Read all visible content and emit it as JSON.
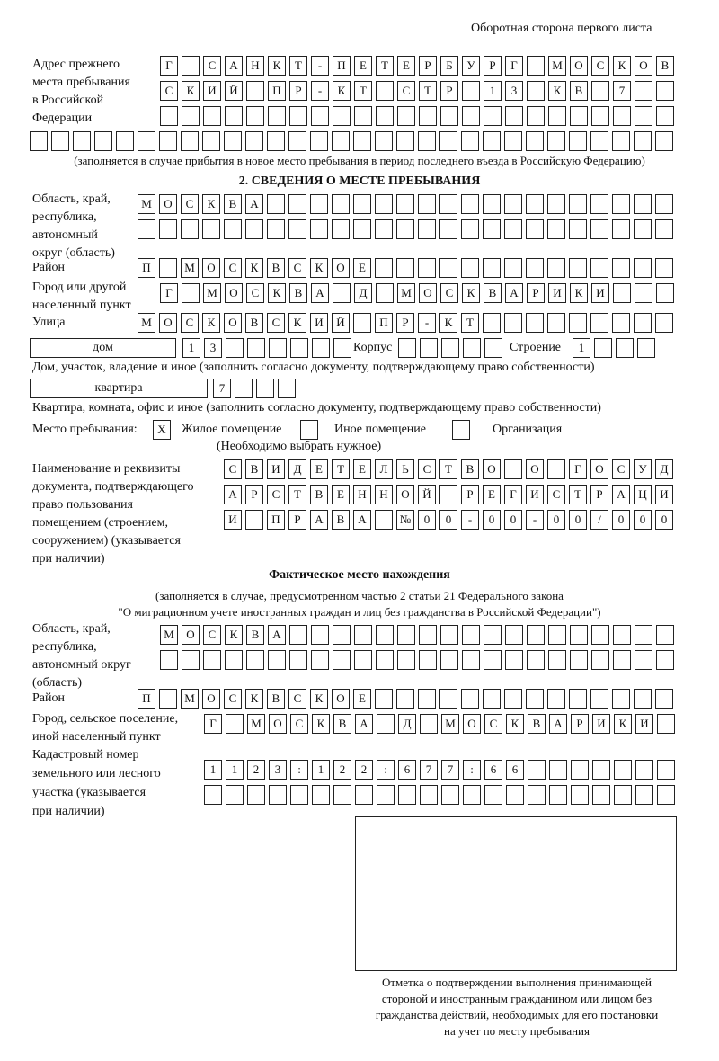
{
  "header": {
    "page_side": "Оборотная сторона первого листа"
  },
  "previous_address": {
    "label": [
      "Адрес прежнего",
      "места пребывания",
      "в Российской",
      "Федерации"
    ],
    "rows": [
      [
        "Г",
        "",
        "С",
        "А",
        "Н",
        "К",
        "Т",
        "-",
        "П",
        "Е",
        "Т",
        "Е",
        "Р",
        "Б",
        "У",
        "Р",
        "Г",
        "",
        "М",
        "О",
        "С",
        "К",
        "О",
        "В"
      ],
      [
        "С",
        "К",
        "И",
        "Й",
        "",
        "П",
        "Р",
        "-",
        "К",
        "Т",
        "",
        "С",
        "Т",
        "Р",
        "",
        "1",
        "3",
        "",
        "К",
        "В",
        "",
        "7",
        "",
        ""
      ],
      [
        "",
        "",
        "",
        "",
        "",
        "",
        "",
        "",
        "",
        "",
        "",
        "",
        "",
        "",
        "",
        "",
        "",
        "",
        "",
        "",
        "",
        "",
        "",
        ""
      ],
      [
        "",
        "",
        "",
        "",
        "",
        "",
        "",
        "",
        "",
        "",
        "",
        "",
        "",
        "",
        "",
        "",
        "",
        "",
        "",
        "",
        "",
        "",
        "",
        "",
        "",
        "",
        "",
        "",
        "",
        ""
      ]
    ],
    "note": "(заполняется в случае прибытия в новое место пребывания в период последнего въезда в Российскую Федерацию)"
  },
  "section2": {
    "title": "2. СВЕДЕНИЯ О МЕСТЕ ПРЕБЫВАНИЯ",
    "region_label": [
      "Область, край,",
      "республика,",
      "автономный",
      "округ (область)"
    ],
    "region_rows": [
      [
        "М",
        "О",
        "С",
        "К",
        "В",
        "А",
        "",
        "",
        "",
        "",
        "",
        "",
        "",
        "",
        "",
        "",
        "",
        "",
        "",
        "",
        "",
        "",
        "",
        "",
        ""
      ],
      [
        "",
        "",
        "",
        "",
        "",
        "",
        "",
        "",
        "",
        "",
        "",
        "",
        "",
        "",
        "",
        "",
        "",
        "",
        "",
        "",
        "",
        "",
        "",
        "",
        ""
      ]
    ],
    "district_label": "Район",
    "district": [
      "П",
      "",
      "М",
      "О",
      "С",
      "К",
      "В",
      "С",
      "К",
      "О",
      "Е",
      "",
      "",
      "",
      "",
      "",
      "",
      "",
      "",
      "",
      "",
      "",
      "",
      "",
      ""
    ],
    "city_label": [
      "Город или другой",
      "населенный пункт"
    ],
    "city": [
      "Г",
      "",
      "М",
      "О",
      "С",
      "К",
      "В",
      "А",
      "",
      "Д",
      "",
      "М",
      "О",
      "С",
      "К",
      "В",
      "А",
      "Р",
      "И",
      "К",
      "И",
      "",
      "",
      ""
    ],
    "street_label": "Улица",
    "street": [
      "М",
      "О",
      "С",
      "К",
      "О",
      "В",
      "С",
      "К",
      "И",
      "Й",
      "",
      "П",
      "Р",
      "-",
      "К",
      "Т",
      "",
      "",
      "",
      "",
      "",
      "",
      "",
      "",
      ""
    ],
    "house_type": "дом",
    "house": [
      "1",
      "3",
      "",
      "",
      "",
      "",
      "",
      ""
    ],
    "korpus_label": "Корпус",
    "korpus": [
      "",
      "",
      "",
      "",
      ""
    ],
    "building_label": "Строение",
    "building": [
      "1",
      "",
      "",
      ""
    ],
    "house_note": "Дом, участок, владение и иное (заполнить согласно документу, подтверждающему право собственности)",
    "flat_type": "квартира",
    "flat": [
      "7",
      "",
      "",
      ""
    ],
    "flat_note": "Квартира, комната, офис и иное (заполнить согласно документу, подтверждающему право собственности)",
    "place_label": "Место пребывания:",
    "place_options": [
      {
        "label": "Жилое помещение",
        "mark": "X"
      },
      {
        "label": "Иное помещение",
        "mark": ""
      },
      {
        "label": "Организация",
        "mark": ""
      }
    ],
    "place_note": "(Необходимо выбрать нужное)",
    "doc_label": [
      "Наименование и реквизиты",
      "документа, подтверждающего",
      "право пользования",
      "помещением (строением,",
      "сооружением) (указывается",
      "при наличии)"
    ],
    "doc_rows": [
      [
        "С",
        "В",
        "И",
        "Д",
        "Е",
        "Т",
        "Е",
        "Л",
        "Ь",
        "С",
        "Т",
        "В",
        "О",
        "",
        "О",
        "",
        "Г",
        "О",
        "С",
        "У",
        "Д"
      ],
      [
        "А",
        "Р",
        "С",
        "Т",
        "В",
        "Е",
        "Н",
        "Н",
        "О",
        "Й",
        "",
        "Р",
        "Е",
        "Г",
        "И",
        "С",
        "Т",
        "Р",
        "А",
        "Ц",
        "И"
      ],
      [
        "И",
        "",
        "П",
        "Р",
        "А",
        "В",
        "А",
        "",
        "№",
        "0",
        "0",
        "-",
        "0",
        "0",
        "-",
        "0",
        "0",
        "/",
        "0",
        "0",
        "0"
      ]
    ]
  },
  "actual": {
    "title": "Фактическое место нахождения",
    "note": [
      "(заполняется в случае, предусмотренном частью 2 статьи 21 Федерального закона",
      "\"О миграционном учете иностранных граждан и лиц без гражданства в Российской Федерации\")"
    ],
    "region_label": [
      "Область, край,",
      "республика,",
      "автономный округ",
      "(область)"
    ],
    "region_rows": [
      [
        "М",
        "О",
        "С",
        "К",
        "В",
        "А",
        "",
        "",
        "",
        "",
        "",
        "",
        "",
        "",
        "",
        "",
        "",
        "",
        "",
        "",
        "",
        "",
        "",
        ""
      ],
      [
        "",
        "",
        "",
        "",
        "",
        "",
        "",
        "",
        "",
        "",
        "",
        "",
        "",
        "",
        "",
        "",
        "",
        "",
        "",
        "",
        "",
        "",
        "",
        ""
      ]
    ],
    "district_label": "Район",
    "district": [
      "П",
      "",
      "М",
      "О",
      "С",
      "К",
      "В",
      "С",
      "К",
      "О",
      "Е",
      "",
      "",
      "",
      "",
      "",
      "",
      "",
      "",
      "",
      "",
      "",
      "",
      "",
      ""
    ],
    "city_label": [
      "Город, сельское поселение,",
      "иной населенный пункт"
    ],
    "city": [
      "Г",
      "",
      "М",
      "О",
      "С",
      "К",
      "В",
      "А",
      "",
      "Д",
      "",
      "М",
      "О",
      "С",
      "К",
      "В",
      "А",
      "Р",
      "И",
      "К",
      "И",
      ""
    ],
    "cadastre_label": [
      "Кадастровый номер",
      "земельного или лесного",
      "участка (указывается",
      "при наличии)"
    ],
    "cadastre_rows": [
      [
        "1",
        "1",
        "2",
        "3",
        ":",
        "1",
        "2",
        "2",
        ":",
        "6",
        "7",
        "7",
        ":",
        "6",
        "6",
        "",
        "",
        "",
        "",
        "",
        "",
        ""
      ],
      [
        "",
        "",
        "",
        "",
        "",
        "",
        "",
        "",
        "",
        "",
        "",
        "",
        "",
        "",
        "",
        "",
        "",
        "",
        "",
        "",
        "",
        ""
      ]
    ],
    "stamp_caption": [
      "Отметка о подтверждении выполнения принимающей",
      "стороной и иностранным гражданином или лицом без",
      "гражданства действий, необходимых для его постановки",
      "на учет по месту пребывания"
    ]
  }
}
